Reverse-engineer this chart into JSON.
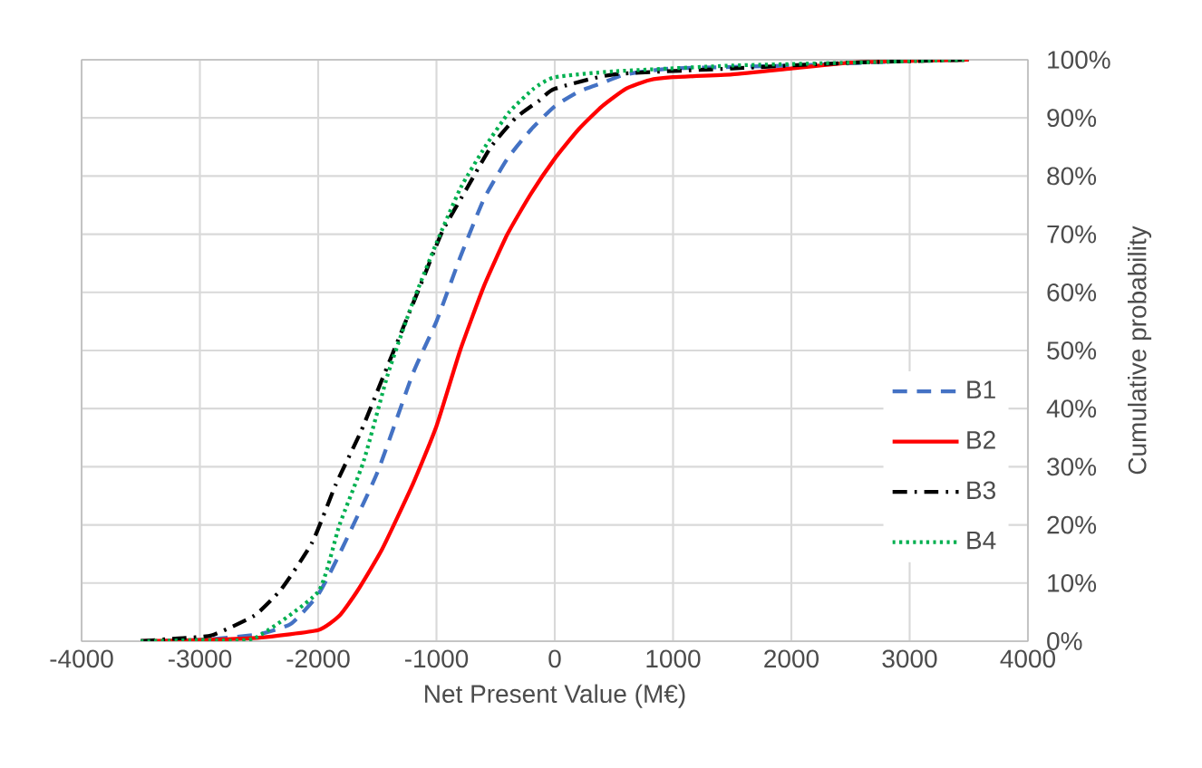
{
  "chart_data": {
    "type": "line",
    "xlabel": "Net Present Value (M€)",
    "ylabel": "Cumulative probability",
    "xlim": [
      -4000,
      4000
    ],
    "xticks": [
      -4000,
      -3000,
      -2000,
      -1000,
      0,
      1000,
      2000,
      3000,
      4000
    ],
    "ylim": [
      0,
      100
    ],
    "yticks": [
      {
        "value": 0,
        "label": "0%"
      },
      {
        "value": 10,
        "label": "10%"
      },
      {
        "value": 20,
        "label": "20%"
      },
      {
        "value": 30,
        "label": "30%"
      },
      {
        "value": 40,
        "label": "40%"
      },
      {
        "value": 50,
        "label": "50%"
      },
      {
        "value": 60,
        "label": "60%"
      },
      {
        "value": 70,
        "label": "70%"
      },
      {
        "value": 80,
        "label": "80%"
      },
      {
        "value": 90,
        "label": "90%"
      },
      {
        "value": 100,
        "label": "100%"
      }
    ],
    "grid": true,
    "legend": "right",
    "marker": "none",
    "series": [
      {
        "name": "B1",
        "color": "#4472c4",
        "line_style": "dashed",
        "x": [
          -3500,
          -3000,
          -2500,
          -2230,
          -2000,
          -1820,
          -1500,
          -1200,
          -1000,
          -800,
          -600,
          -400,
          -200,
          0,
          200,
          400,
          600,
          1000,
          2000,
          3000,
          3500
        ],
        "values": [
          0,
          0.2,
          1.2,
          3,
          8,
          15,
          29,
          46,
          55,
          66,
          76,
          83,
          88,
          92,
          94.5,
          96,
          97.5,
          98.5,
          99,
          99.8,
          100
        ]
      },
      {
        "name": "B2",
        "color": "#ff0000",
        "line_style": "solid",
        "x": [
          -3500,
          -3000,
          -2500,
          -2000,
          -1820,
          -1670,
          -1460,
          -1200,
          -1000,
          -800,
          -600,
          -400,
          -200,
          0,
          200,
          400,
          600,
          800,
          1000,
          1500,
          2000,
          2500,
          3000,
          3500
        ],
        "values": [
          0,
          0.2,
          0.6,
          1.9,
          4.4,
          8.6,
          15.8,
          27,
          37,
          50,
          61,
          70,
          77,
          83,
          88,
          92,
          95,
          96.5,
          97,
          97.5,
          98.5,
          99.5,
          99.8,
          100
        ]
      },
      {
        "name": "B3",
        "color": "#000000",
        "line_style": "dashdot",
        "x": [
          -3500,
          -3180,
          -2900,
          -2540,
          -2310,
          -2050,
          -1850,
          -1640,
          -1460,
          -1280,
          -1100,
          -950,
          -740,
          -540,
          -330,
          -130,
          0,
          500,
          1500,
          2500,
          3500
        ],
        "values": [
          0,
          0.5,
          1,
          4.4,
          9,
          17,
          27,
          36,
          45,
          54,
          63,
          70.5,
          78,
          85,
          90,
          93,
          95,
          97.5,
          98.5,
          99.5,
          100
        ]
      },
      {
        "name": "B4",
        "color": "#00b050",
        "line_style": "dotted",
        "x": [
          -3500,
          -3000,
          -2540,
          -2000,
          -1820,
          -1615,
          -1410,
          -1205,
          -1000,
          -795,
          -590,
          -385,
          -180,
          0,
          500,
          1500,
          2500,
          3500
        ],
        "values": [
          0,
          0.2,
          0.5,
          8.5,
          20,
          31,
          46,
          58,
          68.5,
          78,
          85,
          91,
          95,
          97,
          98,
          99,
          99.5,
          100
        ]
      }
    ]
  }
}
